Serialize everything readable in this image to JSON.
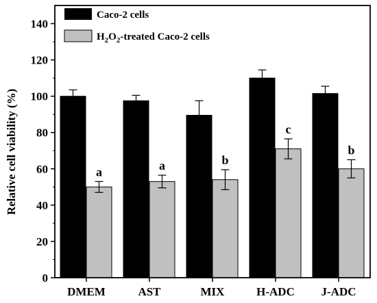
{
  "chart_data": {
    "type": "bar",
    "categories": [
      "DMEM",
      "AST",
      "MIX",
      "H-ADC",
      "J-ADC"
    ],
    "ylabel": "Relative cell viability (%)",
    "ylim": [
      0,
      150
    ],
    "yticks": [
      0,
      20,
      40,
      60,
      80,
      100,
      120,
      140
    ],
    "grid": false,
    "legend_position": "top-left",
    "series": [
      {
        "name": "Caco-2 cells",
        "color": "#000000",
        "values": [
          100,
          97.5,
          89.5,
          110,
          101.5
        ],
        "errors": [
          3.5,
          3.0,
          8.0,
          4.5,
          4.0
        ]
      },
      {
        "name": "H2O2-treated Caco-2 cells",
        "name_parts": {
          "a": "H",
          "b": "2",
          "c": "O",
          "d": "2",
          "e": "-treated Caco-2 cells"
        },
        "color": "#c0c0c0",
        "values": [
          50,
          53,
          54,
          71,
          60
        ],
        "errors": [
          3.0,
          3.5,
          5.5,
          5.5,
          5.0
        ],
        "labels": [
          "a",
          "a",
          "b",
          "c",
          "b"
        ]
      }
    ]
  }
}
